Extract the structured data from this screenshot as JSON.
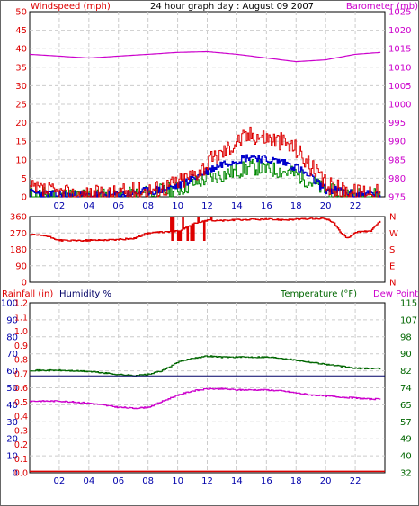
{
  "colors": {
    "wind": "#dd0000",
    "gust_line": "#0000cc",
    "avg": "#008800",
    "baro": "#cc00cc",
    "xtick": "#0000aa",
    "hum": "#000066",
    "temp": "#006600"
  },
  "top": {
    "title": "24 hour graph day : August 09 2007",
    "left_label": "Windspeed (mph)",
    "right_label": "Barometer (mb)",
    "y_ticks_left": [
      "0",
      "5",
      "10",
      "15",
      "20",
      "25",
      "30",
      "35",
      "40",
      "45",
      "50"
    ],
    "y_ticks_right": [
      "975",
      "980",
      "985",
      "990",
      "995",
      "1000",
      "1005",
      "1010",
      "1015",
      "1020",
      "1025"
    ]
  },
  "mid": {
    "y_ticks_left": [
      "0",
      "90",
      "180",
      "270",
      "360"
    ],
    "y_ticks_right": [
      "N",
      "E",
      "S",
      "W",
      "N"
    ]
  },
  "bottom": {
    "left_label_1": "Rainfall (in)",
    "left_label_2": "Humidity %",
    "right_label_1": "Temperature (°F)",
    "right_label_2": "Dew Point",
    "rain_ticks": [
      "0.0",
      "0.1",
      "0.2",
      "0.3",
      "0.4",
      "0.5",
      "0.6",
      "0.7",
      "0.8",
      "0.9",
      "1.0",
      "1.1",
      "1.2"
    ],
    "hum_ticks": [
      "0",
      "10",
      "20",
      "30",
      "40",
      "50",
      "60",
      "70",
      "80",
      "90",
      "100"
    ],
    "temp_ticks": [
      "32",
      "40",
      "49",
      "57",
      "65",
      "74",
      "82",
      "90",
      "98",
      "107",
      "115"
    ]
  },
  "x_ticks": [
    "02",
    "04",
    "06",
    "08",
    "10",
    "12",
    "14",
    "16",
    "18",
    "20",
    "22"
  ],
  "chart_data": [
    {
      "type": "line",
      "title": "24 hour graph day : August 09 2007",
      "xlabel": "",
      "ylabel": "Windspeed (mph)",
      "y2label": "Barometer (mb)",
      "x_range_hours": [
        0,
        24
      ],
      "ylim": [
        0,
        50
      ],
      "y2lim": [
        975,
        1025
      ],
      "grid": true,
      "series": [
        {
          "name": "Windspeed (mph)",
          "x": [
            0,
            1,
            2,
            3,
            4,
            5,
            6,
            7,
            8,
            9,
            10,
            11,
            12,
            13,
            14,
            15,
            16,
            17,
            18,
            19,
            20,
            21,
            22,
            23,
            23.7
          ],
          "y": [
            2,
            1.5,
            1,
            0.5,
            0.5,
            0.5,
            1,
            1.5,
            2,
            2.5,
            4,
            6,
            9,
            12,
            15,
            17,
            16,
            15,
            13,
            8,
            3,
            2,
            1,
            2,
            0.5
          ]
        },
        {
          "name": "",
          "x": [
            0,
            1,
            2,
            3,
            4,
            5,
            6,
            7,
            8,
            9,
            10,
            11,
            12,
            13,
            14,
            15,
            16,
            17,
            18,
            19,
            20,
            21,
            22,
            23,
            23.7
          ],
          "y": [
            1,
            0.8,
            0.5,
            0.3,
            0.3,
            0.3,
            0.5,
            1,
            1.5,
            2,
            3,
            5,
            7,
            9,
            10,
            11,
            10,
            9.5,
            8,
            5,
            2,
            1.5,
            0.5,
            1,
            0.3
          ]
        },
        {
          "name": "",
          "x": [
            0,
            1,
            2,
            3,
            4,
            5,
            6,
            7,
            8,
            9,
            10,
            11,
            12,
            13,
            14,
            15,
            16,
            17,
            18,
            19,
            20,
            21,
            22,
            23,
            23.7
          ],
          "y": [
            0.5,
            0.5,
            0.3,
            0.2,
            0.2,
            0.2,
            0.3,
            0.5,
            1,
            1.5,
            2,
            3.5,
            5,
            6,
            7,
            8,
            7.5,
            7,
            6,
            4,
            1.5,
            1,
            0.3,
            0.5,
            0.2
          ]
        },
        {
          "name": "Barometer (mb)",
          "axis": "right",
          "x": [
            0,
            2,
            4,
            6,
            8,
            10,
            12,
            14,
            16,
            18,
            20,
            22,
            23.7
          ],
          "y": [
            1013.5,
            1013,
            1012.5,
            1013,
            1013.5,
            1014,
            1014.2,
            1013.5,
            1012.5,
            1011.5,
            1012,
            1013.5,
            1014
          ]
        }
      ]
    },
    {
      "type": "line",
      "xlabel": "",
      "ylabel": "",
      "x_range_hours": [
        0,
        24
      ],
      "ylim": [
        0,
        360
      ],
      "y2_labels": [
        "N",
        "E",
        "S",
        "W",
        "N"
      ],
      "grid": true,
      "series": [
        {
          "name": "",
          "x": [
            0,
            1,
            2,
            3,
            4,
            5,
            6,
            7,
            8,
            9,
            10,
            11,
            12,
            13,
            14,
            15,
            16,
            17,
            18,
            19,
            20,
            20.5,
            21,
            21.5,
            22,
            23,
            23.7
          ],
          "y": [
            260,
            255,
            230,
            228,
            230,
            232,
            234,
            240,
            270,
            275,
            280,
            320,
            338,
            338,
            342,
            344,
            345,
            343,
            345,
            348,
            348,
            330,
            270,
            240,
            275,
            280,
            335
          ]
        }
      ]
    },
    {
      "type": "line",
      "xlabel": "",
      "ylabel": "Rainfall (in)",
      "ylabel2": "Humidity %",
      "y2label": "Temperature (°F)",
      "y2label2": "Dew Point",
      "x_range_hours": [
        0,
        24
      ],
      "ylim": [
        0,
        1.2
      ],
      "y_humidity_lim": [
        0,
        100
      ],
      "y2lim": [
        32,
        115
      ],
      "grid": true,
      "series": [
        {
          "name": "Temperature (°F)",
          "axis": "right",
          "x": [
            0,
            2,
            4,
            6,
            7,
            8,
            9,
            10,
            11,
            12,
            13,
            14,
            15,
            16,
            17,
            18,
            19,
            20,
            21,
            22,
            23,
            23.7
          ],
          "y": [
            82,
            82,
            81.5,
            80,
            79.5,
            80,
            82,
            86,
            88,
            89,
            88.5,
            88.5,
            88.5,
            88.5,
            88,
            87,
            86,
            85,
            84,
            83,
            83,
            83
          ]
        },
        {
          "name": "Dew Point",
          "axis": "right",
          "x": [
            0,
            2,
            4,
            6,
            7,
            8,
            9,
            10,
            11,
            12,
            13,
            14,
            15,
            16,
            17,
            18,
            19,
            20,
            21,
            22,
            23,
            23.7
          ],
          "y": [
            67,
            67,
            66,
            64,
            63.5,
            64,
            67,
            70,
            72,
            73,
            73,
            72.5,
            72.5,
            72.5,
            72,
            71,
            70,
            69.5,
            69,
            68.5,
            68,
            68
          ]
        },
        {
          "name": "Humidity %",
          "axis": "humidity",
          "x": [
            0,
            24
          ],
          "y": [
            57,
            57
          ]
        },
        {
          "name": "Rainfall (in)",
          "x": [
            0,
            24
          ],
          "y": [
            0.01,
            0.01
          ]
        }
      ]
    }
  ]
}
